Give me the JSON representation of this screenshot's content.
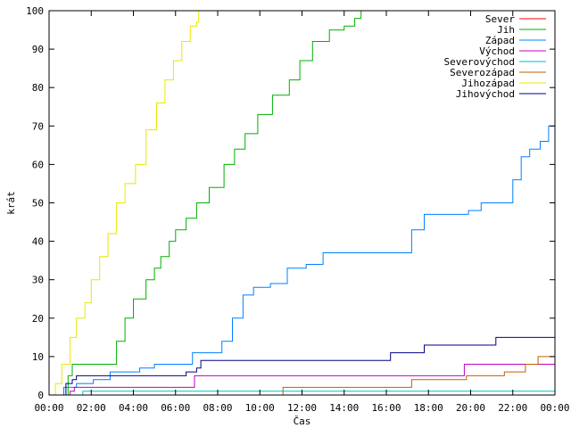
{
  "chart_data": {
    "type": "line",
    "xlabel": "Čas",
    "ylabel": "krát",
    "xlim": [
      0,
      24
    ],
    "ylim": [
      0,
      100
    ],
    "x_ticks": [
      {
        "value": 0,
        "label": "00:00"
      },
      {
        "value": 2,
        "label": "02:00"
      },
      {
        "value": 4,
        "label": "04:00"
      },
      {
        "value": 6,
        "label": "06:00"
      },
      {
        "value": 8,
        "label": "08:00"
      },
      {
        "value": 10,
        "label": "10:00"
      },
      {
        "value": 12,
        "label": "12:00"
      },
      {
        "value": 14,
        "label": "14:00"
      },
      {
        "value": 16,
        "label": "16:00"
      },
      {
        "value": 18,
        "label": "18:00"
      },
      {
        "value": 20,
        "label": "20:00"
      },
      {
        "value": 22,
        "label": "22:00"
      },
      {
        "value": 24,
        "label": "00:00"
      }
    ],
    "y_ticks": [
      0,
      10,
      20,
      30,
      40,
      50,
      60,
      70,
      80,
      90,
      100
    ],
    "grid": false,
    "legend_position": "top-right",
    "series": [
      {
        "name": "Sever",
        "color": "#ff0000",
        "x": [
          0,
          24
        ],
        "y": [
          0,
          0
        ]
      },
      {
        "name": "Jih",
        "color": "#00b000",
        "x": [
          0,
          0.9,
          1.1,
          2.9,
          3.2,
          3.6,
          4.0,
          4.6,
          5.0,
          5.3,
          5.7,
          6.0,
          6.5,
          7.0,
          7.6,
          8.3,
          8.8,
          9.3,
          9.9,
          10.6,
          11.4,
          11.9,
          12.5,
          13.3,
          14.0,
          14.5,
          14.8
        ],
        "y": [
          0,
          5,
          8,
          8,
          14,
          20,
          25,
          30,
          33,
          36,
          40,
          43,
          46,
          50,
          54,
          60,
          64,
          68,
          73,
          78,
          82,
          87,
          92,
          95,
          96,
          98,
          100
        ]
      },
      {
        "name": "Západ",
        "color": "#0080ff",
        "x": [
          0,
          0.7,
          1.3,
          2.1,
          2.9,
          3.5,
          4.3,
          5.0,
          6.0,
          6.8,
          7.4,
          8.2,
          8.7,
          9.2,
          9.7,
          10.5,
          11.3,
          12.2,
          13.0,
          13.8,
          15.2,
          16.5,
          17.2,
          17.8,
          18.3,
          19.9,
          20.5,
          21.5,
          22.0,
          22.4,
          22.8,
          23.3,
          23.7,
          24.0
        ],
        "y": [
          0,
          2,
          3,
          4,
          6,
          6,
          7,
          8,
          8,
          11,
          11,
          14,
          20,
          26,
          28,
          29,
          33,
          34,
          37,
          37,
          37,
          37,
          43,
          47,
          47,
          48,
          50,
          50,
          56,
          62,
          64,
          66,
          70,
          72
        ]
      },
      {
        "name": "Východ",
        "color": "#c000c0",
        "x": [
          0,
          1.0,
          1.2,
          6.5,
          6.9,
          19.4,
          19.7,
          24.0
        ],
        "y": [
          0,
          1,
          2,
          2,
          5,
          5,
          8,
          9
        ]
      },
      {
        "name": "Severovýchod",
        "color": "#00c0c0",
        "x": [
          0,
          1.4,
          1.6,
          24.0
        ],
        "y": [
          0,
          0,
          1,
          1
        ]
      },
      {
        "name": "Severozápad",
        "color": "#c06000",
        "x": [
          0,
          11.0,
          11.1,
          17.0,
          17.2,
          19.6,
          19.8,
          21.4,
          21.6,
          22.4,
          22.6,
          23.0,
          23.2,
          23.8,
          24.0
        ],
        "y": [
          0,
          0,
          2,
          2,
          4,
          4,
          5,
          5,
          6,
          6,
          8,
          8,
          10,
          10,
          12
        ]
      },
      {
        "name": "Jihozápad",
        "color": "#e8e800",
        "x": [
          0,
          0.3,
          0.6,
          1.0,
          1.3,
          1.7,
          2.0,
          2.4,
          2.8,
          3.2,
          3.6,
          4.1,
          4.6,
          5.1,
          5.5,
          5.9,
          6.3,
          6.7,
          7.0,
          7.1
        ],
        "y": [
          0,
          3,
          8,
          15,
          20,
          24,
          30,
          36,
          42,
          50,
          55,
          60,
          69,
          76,
          82,
          87,
          92,
          96,
          97,
          100
        ]
      },
      {
        "name": "Jihovýchod",
        "color": "#000080",
        "x": [
          0,
          0.8,
          1.1,
          1.3,
          2.0,
          3.5,
          6.0,
          6.5,
          7.0,
          7.2,
          16.0,
          16.2,
          17.5,
          17.8,
          21.0,
          21.2,
          24.0
        ],
        "y": [
          0,
          3,
          4,
          5,
          5,
          5,
          5,
          6,
          7,
          9,
          9,
          11,
          11,
          13,
          13,
          15,
          15
        ]
      }
    ]
  }
}
